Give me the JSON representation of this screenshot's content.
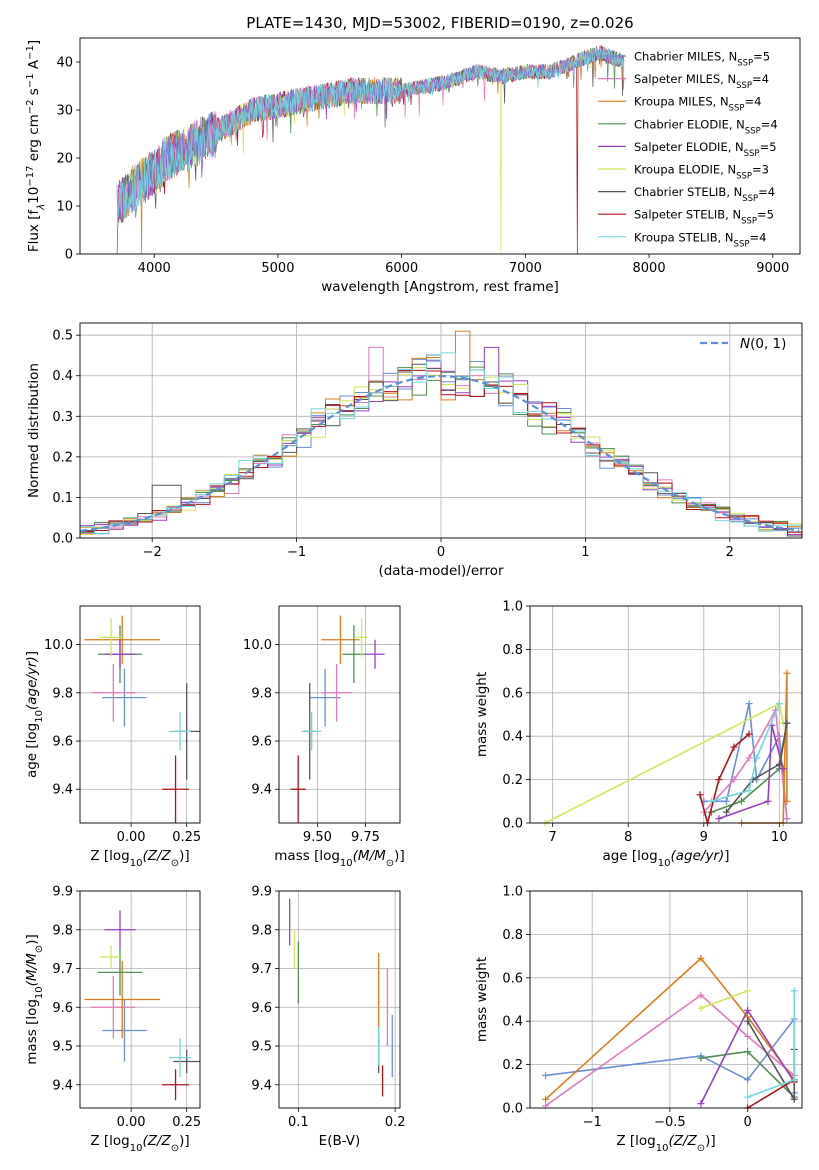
{
  "figure": {
    "title": "PLATE=1430, MJD=53002, FIBERID=0190, z=0.026"
  },
  "colors": {
    "Chabrier MILES": "#6a8fd6",
    "Salpeter MILES": "#e07bbf",
    "Kroupa MILES": "#d97d19",
    "Chabrier ELODIE": "#4f8f4f",
    "Salpeter ELODIE": "#9b3ec0",
    "Kroupa ELODIE": "#d2e65a",
    "Chabrier STELIB": "#555555",
    "Salpeter STELIB": "#b3111a",
    "Kroupa STELIB": "#72d6dc"
  },
  "chart_data": [
    {
      "id": "spectrum",
      "type": "line",
      "title": "PLATE=1430, MJD=53002, FIBERID=0190, z=0.026",
      "xlabel": "wavelength [Angstrom, rest frame]",
      "ylabel": "Flux [f_λ10^-17 erg cm^-2 s^-1 A^-1]",
      "xlim": [
        3400,
        9220
      ],
      "ylim": [
        0,
        45
      ],
      "xticks": [
        4000,
        5000,
        6000,
        7000,
        8000,
        9000
      ],
      "yticks": [
        0,
        10,
        20,
        30,
        40
      ],
      "grid": false,
      "legend_position": "top-right",
      "legend": [
        "Chabrier MILES, N_SSP=5",
        "Salpeter MILES, N_SSP=4",
        "Kroupa MILES, N_SSP=4",
        "Chabrier ELODIE, N_SSP=4",
        "Salpeter ELODIE, N_SSP=5",
        "Kroupa ELODIE, N_SSP=3",
        "Chabrier STELIB, N_SSP=4",
        "Salpeter STELIB, N_SSP=5",
        "Kroupa STELIB, N_SSP=4"
      ],
      "continuum": {
        "x": [
          3700,
          3800,
          3900,
          4000,
          4100,
          4200,
          4400,
          4600,
          4800,
          5000,
          5200,
          5400,
          5600,
          5800,
          6000,
          6200,
          6400,
          6600,
          6800,
          7000,
          7200,
          7400,
          7600,
          7800,
          8000,
          8200,
          8400,
          8600,
          8800,
          9000,
          9150
        ],
        "y": [
          10,
          13,
          15,
          17,
          20,
          21,
          24,
          27,
          30,
          31,
          32,
          33,
          34,
          34,
          34,
          35,
          36,
          38,
          37,
          38,
          38,
          40,
          42,
          40,
          39,
          38,
          38,
          36,
          35,
          35,
          36
        ]
      },
      "dropouts": [
        {
          "series": "Chabrier STELIB",
          "x": 3700,
          "y": 0
        },
        {
          "series": "Kroupa MILES",
          "x": 3900,
          "y": 0
        },
        {
          "series": "Kroupa ELODIE",
          "x": 6800,
          "y": 0
        },
        {
          "series": "Salpeter STELIB",
          "x": 7420,
          "y": 0
        }
      ]
    },
    {
      "id": "residuals",
      "type": "histogram",
      "xlabel": "(data-model)/error",
      "ylabel": "Normed distribution",
      "xlim": [
        -2.5,
        2.5
      ],
      "ylim": [
        0,
        0.53
      ],
      "xticks": [
        -2,
        -1,
        0,
        1,
        2
      ],
      "yticks": [
        0.0,
        0.1,
        0.2,
        0.3,
        0.4,
        0.5
      ],
      "grid": true,
      "legend_position": "top-right",
      "gaussian_label": "N(0,1)",
      "peak_values": [
        {
          "series": "Salpeter MILES",
          "x": -0.45,
          "y": 0.47
        },
        {
          "series": "Kroupa MILES",
          "x": 0.15,
          "y": 0.51
        },
        {
          "series": "Salpeter ELODIE",
          "x": 0.35,
          "y": 0.47
        },
        {
          "series": "Chabrier STELIB",
          "x": -1.9,
          "y": 0.13
        }
      ]
    },
    {
      "id": "age_vs_Z",
      "type": "errorbar",
      "xlabel": "Z [log10(Z/Z⊙)]",
      "ylabel": "age [log10(age/yr)]",
      "xlim": [
        -0.23,
        0.31
      ],
      "ylim": [
        9.26,
        10.16
      ],
      "xticks": [
        0.0,
        0.25
      ],
      "xticklabels": [
        "0.00",
        "0.25"
      ],
      "yticks": [
        9.4,
        9.6,
        9.8,
        10.0
      ],
      "grid": true,
      "points": [
        {
          "series": "Chabrier MILES",
          "x": -0.03,
          "xerr": 0.1,
          "y": 9.78,
          "yerr": 0.12
        },
        {
          "series": "Salpeter MILES",
          "x": -0.08,
          "xerr": 0.1,
          "y": 9.8,
          "yerr": 0.12
        },
        {
          "series": "Kroupa MILES",
          "x": -0.04,
          "xerr": 0.17,
          "y": 10.02,
          "yerr": 0.1
        },
        {
          "series": "Chabrier ELODIE",
          "x": -0.05,
          "xerr": 0.1,
          "y": 9.96,
          "yerr": 0.12
        },
        {
          "series": "Salpeter ELODIE",
          "x": -0.05,
          "xerr": 0.07,
          "y": 9.96,
          "yerr": 0.06
        },
        {
          "series": "Kroupa ELODIE",
          "x": -0.09,
          "xerr": 0.05,
          "y": 10.03,
          "yerr": 0.08
        },
        {
          "series": "Chabrier STELIB",
          "x": 0.25,
          "xerr": 0.06,
          "y": 9.64,
          "yerr": 0.2
        },
        {
          "series": "Salpeter STELIB",
          "x": 0.2,
          "xerr": 0.06,
          "y": 9.4,
          "yerr": 0.14
        },
        {
          "series": "Kroupa STELIB",
          "x": 0.22,
          "xerr": 0.05,
          "y": 9.64,
          "yerr": 0.08
        }
      ]
    },
    {
      "id": "age_vs_mass",
      "type": "errorbar",
      "xlabel": "mass [log10(M/M⊙)]",
      "ylabel": "",
      "xlim": [
        9.3,
        9.93
      ],
      "ylim": [
        9.26,
        10.16
      ],
      "xticks": [
        9.5,
        9.75
      ],
      "xticklabels": [
        "9.50",
        "9.75"
      ],
      "yticks": [
        9.4,
        9.6,
        9.8,
        10.0
      ],
      "grid": true,
      "points": [
        {
          "series": "Chabrier MILES",
          "x": 9.54,
          "xerr": 0.08,
          "y": 9.78,
          "yerr": 0.12
        },
        {
          "series": "Salpeter MILES",
          "x": 9.6,
          "xerr": 0.08,
          "y": 9.8,
          "yerr": 0.12
        },
        {
          "series": "Kroupa MILES",
          "x": 9.62,
          "xerr": 0.1,
          "y": 10.02,
          "yerr": 0.1
        },
        {
          "series": "Chabrier ELODIE",
          "x": 9.69,
          "xerr": 0.06,
          "y": 9.96,
          "yerr": 0.12
        },
        {
          "series": "Salpeter ELODIE",
          "x": 9.8,
          "xerr": 0.05,
          "y": 9.96,
          "yerr": 0.06
        },
        {
          "series": "Kroupa ELODIE",
          "x": 9.73,
          "xerr": 0.03,
          "y": 10.03,
          "yerr": 0.08
        },
        {
          "series": "Chabrier STELIB",
          "x": 9.46,
          "xerr": 0.03,
          "y": 9.64,
          "yerr": 0.2
        },
        {
          "series": "Salpeter STELIB",
          "x": 9.4,
          "xerr": 0.04,
          "y": 9.4,
          "yerr": 0.14
        },
        {
          "series": "Kroupa STELIB",
          "x": 9.47,
          "xerr": 0.05,
          "y": 9.64,
          "yerr": 0.08
        }
      ]
    },
    {
      "id": "mass_weight_vs_age",
      "type": "line",
      "xlabel": "age [log10(age/yr)]",
      "ylabel": "mass weight",
      "xlim": [
        6.7,
        10.3
      ],
      "ylim": [
        0,
        1.0
      ],
      "xticks": [
        7,
        8,
        9,
        10
      ],
      "yticks": [
        0.0,
        0.2,
        0.4,
        0.6,
        0.8,
        1.0
      ],
      "grid": true,
      "series": [
        {
          "name": "Chabrier MILES",
          "x": [
            9.0,
            9.3,
            9.6,
            9.7,
            10.0,
            10.1
          ],
          "y": [
            0.1,
            0.1,
            0.55,
            0.2,
            0.4,
            0.02
          ]
        },
        {
          "name": "Salpeter MILES",
          "x": [
            9.0,
            9.4,
            9.6,
            9.95,
            10.1
          ],
          "y": [
            0.05,
            0.2,
            0.3,
            0.52,
            0.02
          ]
        },
        {
          "name": "Kroupa MILES",
          "x": [
            9.5,
            10.05,
            10.1,
            10.1
          ],
          "y": [
            0.0,
            0.0,
            0.69,
            0.1
          ]
        },
        {
          "name": "Chabrier ELODIE",
          "x": [
            9.1,
            9.5,
            10.0,
            10.1
          ],
          "y": [
            0.05,
            0.1,
            0.25,
            0.46
          ]
        },
        {
          "name": "Salpeter ELODIE",
          "x": [
            9.2,
            9.85,
            9.9,
            10.05
          ],
          "y": [
            0.02,
            0.1,
            0.45,
            0.25
          ]
        },
        {
          "name": "Kroupa ELODIE",
          "x": [
            6.9,
            10.0,
            10.05
          ],
          "y": [
            0.0,
            0.55,
            0.46
          ]
        },
        {
          "name": "Chabrier STELIB",
          "x": [
            9.3,
            9.65,
            10.0,
            10.1
          ],
          "y": [
            0.05,
            0.2,
            0.27,
            0.46
          ]
        },
        {
          "name": "Salpeter STELIB",
          "x": [
            8.95,
            9.05,
            9.2,
            9.4,
            9.6
          ],
          "y": [
            0.13,
            0.0,
            0.2,
            0.35,
            0.41
          ]
        },
        {
          "name": "Kroupa STELIB",
          "x": [
            9.1,
            9.6,
            9.7,
            10.0
          ],
          "y": [
            0.1,
            0.15,
            0.3,
            0.55
          ]
        }
      ]
    },
    {
      "id": "mass_vs_Z",
      "type": "errorbar",
      "xlabel": "Z [log10(Z/Z⊙)]",
      "ylabel": "mass [log10(M/M⊙)]",
      "xlim": [
        -0.23,
        0.31
      ],
      "ylim": [
        9.34,
        9.9
      ],
      "xticks": [
        0.0,
        0.25
      ],
      "xticklabels": [
        "0.00",
        "0.25"
      ],
      "yticks": [
        9.4,
        9.5,
        9.6,
        9.7,
        9.8,
        9.9
      ],
      "grid": true,
      "points": [
        {
          "series": "Chabrier MILES",
          "x": -0.03,
          "xerr": 0.1,
          "y": 9.54,
          "yerr": 0.08
        },
        {
          "series": "Salpeter MILES",
          "x": -0.08,
          "xerr": 0.1,
          "y": 9.6,
          "yerr": 0.08
        },
        {
          "series": "Kroupa MILES",
          "x": -0.04,
          "xerr": 0.17,
          "y": 9.62,
          "yerr": 0.1
        },
        {
          "series": "Chabrier ELODIE",
          "x": -0.05,
          "xerr": 0.1,
          "y": 9.69,
          "yerr": 0.06
        },
        {
          "series": "Salpeter ELODIE",
          "x": -0.05,
          "xerr": 0.07,
          "y": 9.8,
          "yerr": 0.05
        },
        {
          "series": "Kroupa ELODIE",
          "x": -0.09,
          "xerr": 0.05,
          "y": 9.73,
          "yerr": 0.03
        },
        {
          "series": "Chabrier STELIB",
          "x": 0.25,
          "xerr": 0.06,
          "y": 9.46,
          "yerr": 0.03
        },
        {
          "series": "Salpeter STELIB",
          "x": 0.2,
          "xerr": 0.06,
          "y": 9.4,
          "yerr": 0.04
        },
        {
          "series": "Kroupa STELIB",
          "x": 0.22,
          "xerr": 0.05,
          "y": 9.47,
          "yerr": 0.05
        }
      ]
    },
    {
      "id": "mass_vs_EBV",
      "type": "errorbar",
      "xlabel": "E(B-V)",
      "ylabel": "",
      "xlim": [
        0.08,
        0.205
      ],
      "ylim": [
        9.34,
        9.9
      ],
      "xticks": [
        0.1,
        0.2
      ],
      "yticks": [
        9.4,
        9.5,
        9.6,
        9.7,
        9.8,
        9.9
      ],
      "grid": true,
      "points": [
        {
          "series": "Chabrier MILES",
          "x": 0.197,
          "xerr": 0,
          "y": 9.5,
          "yerr": 0.08
        },
        {
          "series": "Salpeter MILES",
          "x": 0.192,
          "xerr": 0,
          "y": 9.6,
          "yerr": 0.1
        },
        {
          "series": "Kroupa MILES",
          "x": 0.183,
          "xerr": 0,
          "y": 9.6,
          "yerr": 0.14
        },
        {
          "series": "Chabrier ELODIE",
          "x": 0.1,
          "xerr": 0,
          "y": 9.69,
          "yerr": 0.08
        },
        {
          "series": "Salpeter ELODIE",
          "x": 0.091,
          "xerr": 0,
          "y": 9.82,
          "yerr": 0.06
        },
        {
          "series": "Kroupa ELODIE",
          "x": 0.096,
          "xerr": 0,
          "y": 9.75,
          "yerr": 0.05
        },
        {
          "series": "Chabrier STELIB",
          "x": 0.183,
          "xerr": 0,
          "y": 9.48,
          "yerr": 0.05
        },
        {
          "series": "Salpeter STELIB",
          "x": 0.187,
          "xerr": 0,
          "y": 9.41,
          "yerr": 0.04
        },
        {
          "series": "Kroupa STELIB",
          "x": 0.183,
          "xerr": 0,
          "y": 9.5,
          "yerr": 0.05
        }
      ]
    },
    {
      "id": "mass_weight_vs_Z",
      "type": "line",
      "xlabel": "Z [log10(Z/Z⊙)]",
      "ylabel": "mass weight",
      "xlim": [
        -1.4,
        0.35
      ],
      "ylim": [
        0,
        1.0
      ],
      "xticks": [
        -1.0,
        -0.5,
        0.0
      ],
      "yticks": [
        0.0,
        0.2,
        0.4,
        0.6,
        0.8,
        1.0
      ],
      "grid": true,
      "series": [
        {
          "name": "Chabrier MILES",
          "x": [
            -1.3,
            -0.3,
            0.0,
            0.3,
            0.3
          ],
          "y": [
            0.15,
            0.24,
            0.13,
            0.41,
            0.07
          ]
        },
        {
          "name": "Salpeter MILES",
          "x": [
            -1.3,
            -0.3,
            0.0,
            0.3
          ],
          "y": [
            0.01,
            0.52,
            0.33,
            0.15
          ]
        },
        {
          "name": "Kroupa MILES",
          "x": [
            -1.3,
            -0.3,
            0.0,
            0.3
          ],
          "y": [
            0.04,
            0.69,
            0.42,
            0.13
          ]
        },
        {
          "name": "Chabrier ELODIE",
          "x": [
            -0.3,
            0.0,
            0.3
          ],
          "y": [
            0.23,
            0.26,
            0.05
          ]
        },
        {
          "name": "Salpeter ELODIE",
          "x": [
            -0.3,
            0.0,
            0.3
          ],
          "y": [
            0.02,
            0.45,
            0.12
          ]
        },
        {
          "name": "Kroupa ELODIE",
          "x": [
            -0.3,
            0.0
          ],
          "y": [
            0.46,
            0.54
          ]
        },
        {
          "name": "Chabrier STELIB",
          "x": [
            0.0,
            0.3,
            0.3
          ],
          "y": [
            0.4,
            0.04,
            0.27
          ]
        },
        {
          "name": "Salpeter STELIB",
          "x": [
            0.0,
            0.3,
            0.3
          ],
          "y": [
            0.0,
            0.13,
            0.12
          ]
        },
        {
          "name": "Kroupa STELIB",
          "x": [
            0.0,
            0.3,
            0.3
          ],
          "y": [
            0.05,
            0.13,
            0.54
          ]
        }
      ]
    }
  ]
}
